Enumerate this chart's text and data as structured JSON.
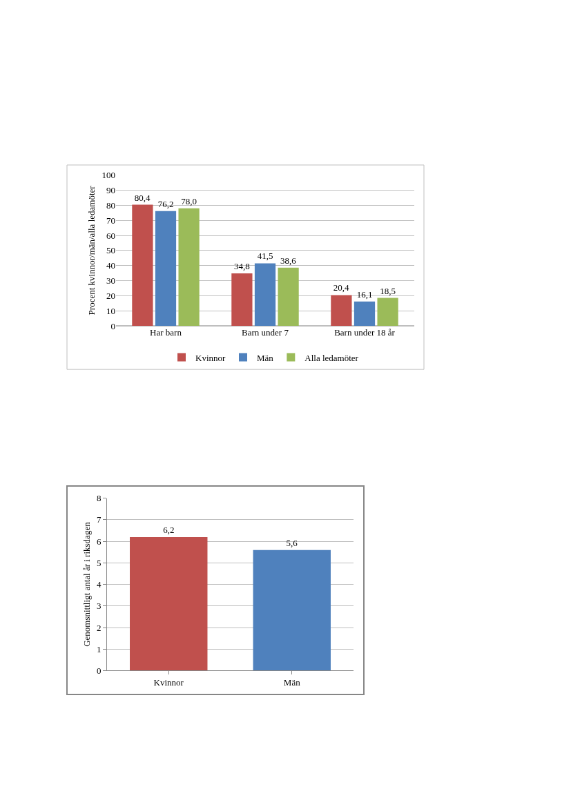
{
  "chart_data": [
    {
      "type": "bar",
      "categories": [
        "Har barn",
        "Barn under 7",
        "Barn under 18 år"
      ],
      "ylabel": "Procent kvinnor/män/alla ledamöter",
      "ylim": [
        0,
        100
      ],
      "yticks": [
        0,
        10,
        20,
        30,
        40,
        50,
        60,
        70,
        80,
        90,
        100
      ],
      "grid": "y",
      "legend": "bottom",
      "series": [
        {
          "name": "Kvinnor",
          "color": "#c0504d",
          "values": [
            80.4,
            34.8,
            20.4
          ],
          "value_labels": [
            "80,4",
            "34,8",
            "20,4"
          ]
        },
        {
          "name": "Män",
          "color": "#4f81bd",
          "values": [
            76.2,
            41.5,
            16.1
          ],
          "value_labels": [
            "76,2",
            "41,5",
            "16,1"
          ]
        },
        {
          "name": "Alla ledamöter",
          "color": "#9bbb59",
          "values": [
            78.0,
            38.6,
            18.5
          ],
          "value_labels": [
            "78,0",
            "38,6",
            "18,5"
          ]
        }
      ]
    },
    {
      "type": "bar",
      "categories": [
        "Kvinnor",
        "Män"
      ],
      "ylabel": "Genomsnittligt antal år i riksdagen",
      "ylim": [
        0,
        8
      ],
      "yticks": [
        0,
        1,
        2,
        3,
        4,
        5,
        6,
        7,
        8
      ],
      "grid": "y",
      "values": [
        6.2,
        5.6
      ],
      "colors": [
        "#c0504d",
        "#4f81bd"
      ],
      "value_labels": [
        "6,2",
        "5,6"
      ]
    }
  ]
}
